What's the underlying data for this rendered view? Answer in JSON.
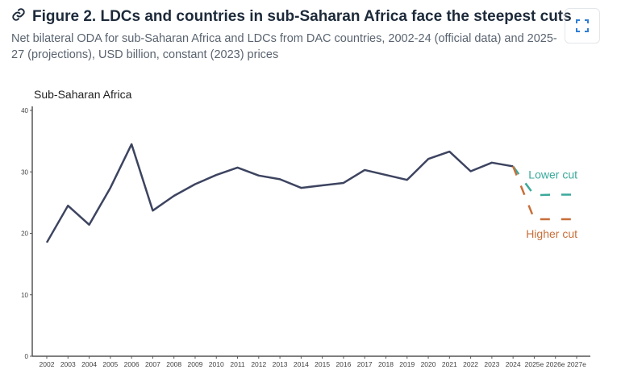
{
  "header": {
    "title": "Figure 2. LDCs and countries in sub-Saharan Africa face the steepest cuts",
    "subtitle": "Net bilateral ODA for sub-Saharan Africa and LDCs from DAC countries, 2002-24 (official data) and 2025-27 (projections), USD billion, constant (2023) prices",
    "link_icon": "link-icon",
    "expand_icon": "expand-icon"
  },
  "chart_data": {
    "type": "line",
    "title": "Sub-Saharan Africa",
    "categories": [
      "2002",
      "2003",
      "2004",
      "2005",
      "2006",
      "2007",
      "2008",
      "2009",
      "2010",
      "2011",
      "2012",
      "2013",
      "2014",
      "2015",
      "2016",
      "2017",
      "2018",
      "2019",
      "2020",
      "2021",
      "2022",
      "2023",
      "2024",
      "2025e",
      "2026e",
      "2027e"
    ],
    "ylim": [
      0,
      40
    ],
    "yticks": [
      0,
      10,
      20,
      30,
      40
    ],
    "grid": false,
    "series": [
      {
        "values": [
          18.5,
          24.5,
          21.4,
          27.4,
          34.5,
          23.7,
          26.1,
          28.0,
          29.5,
          30.7,
          29.4,
          28.8,
          27.4,
          27.8,
          28.2,
          30.3,
          29.5,
          28.7,
          32.1,
          33.3,
          30.1,
          31.5,
          30.9,
          null,
          null,
          null
        ],
        "color": "#3d4460",
        "style": "solid"
      },
      {
        "name": "Lower cut",
        "values": [
          null,
          null,
          null,
          null,
          null,
          null,
          null,
          null,
          null,
          null,
          null,
          null,
          null,
          null,
          null,
          null,
          null,
          null,
          null,
          null,
          null,
          null,
          30.9,
          26.2,
          26.3,
          26.3
        ],
        "color": "#3aa99b",
        "style": "dashed"
      },
      {
        "name": "Higher cut",
        "values": [
          null,
          null,
          null,
          null,
          null,
          null,
          null,
          null,
          null,
          null,
          null,
          null,
          null,
          null,
          null,
          null,
          null,
          null,
          null,
          null,
          null,
          null,
          30.9,
          22.3,
          22.3,
          22.3
        ],
        "color": "#c86f3a",
        "style": "dashed"
      }
    ]
  }
}
